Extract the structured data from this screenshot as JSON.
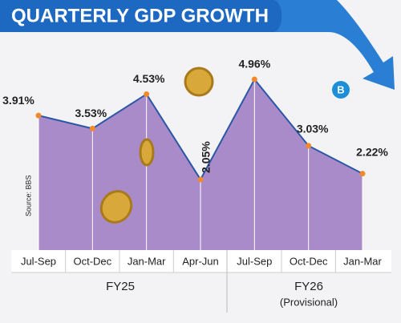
{
  "chart_data": {
    "type": "area",
    "title": "QUARTERLY GDP GROWTH",
    "source": "Source: BBS",
    "categories": [
      "Jul-Sep",
      "Oct-Dec",
      "Jan-Mar",
      "Apr-Jun",
      "Jul-Sep",
      "Oct-Dec",
      "Jan-Mar"
    ],
    "values": [
      3.91,
      3.53,
      4.53,
      2.05,
      4.96,
      3.03,
      2.22
    ],
    "value_labels": [
      "3.91%",
      "3.53%",
      "4.53%",
      "2.05%",
      "4.96%",
      "3.03%",
      "2.22%"
    ],
    "groups": [
      {
        "label": "FY25"
      },
      {
        "label": "FY26",
        "note": "(Provisional)"
      }
    ],
    "color": "#a98bc9",
    "line_color": "#2b57a6",
    "marker_color": "#f28a2a"
  }
}
